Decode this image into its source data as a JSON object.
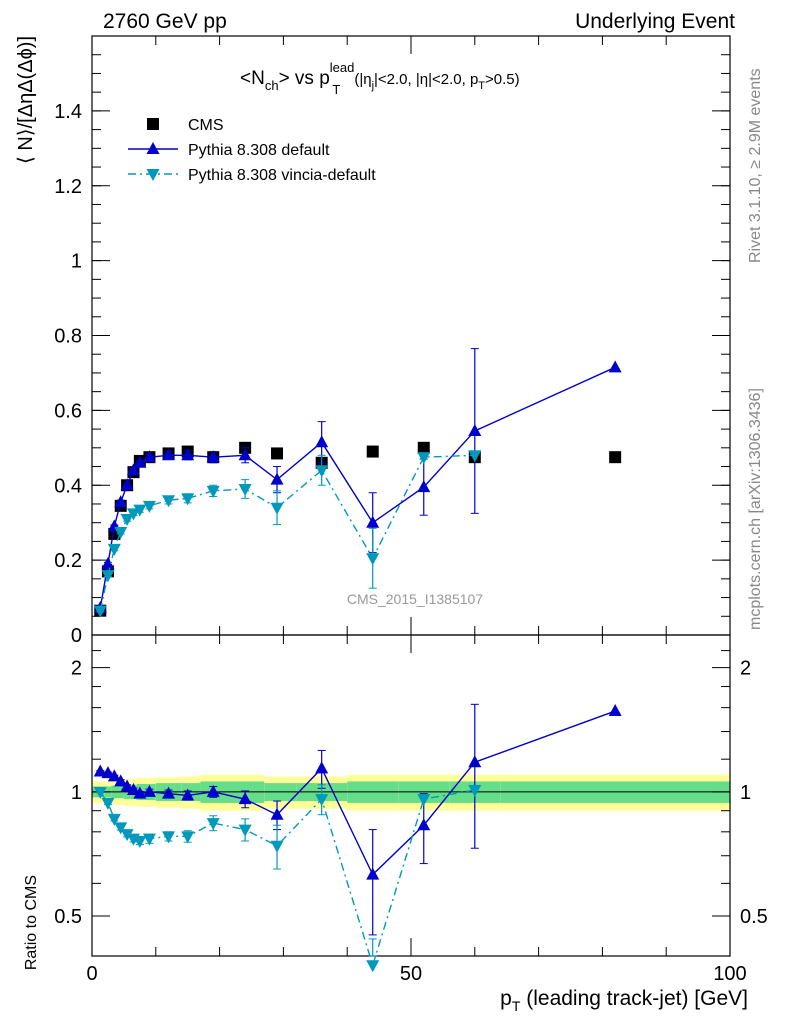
{
  "header": {
    "left": "2760 GeV pp",
    "right": "Underlying Event"
  },
  "title": {
    "prefix": "<N",
    "sub1": "ch",
    "mid": "> vs p",
    "sup": "lead",
    "sub2": "T",
    "cuts_a": "(|η",
    "cuts_a_sub": "j",
    "cuts_b": "|<2.0, |η|<2.0, p",
    "cuts_b_sub": "T",
    "cuts_c": ">0.5)"
  },
  "side_labels": {
    "rivet": "Rivet 3.1.10, ≥ 2.9M events",
    "mcplots": "mcplots.cern.ch [arXiv:1306.3436]"
  },
  "watermark": "CMS_2015_I1385107",
  "axes": {
    "ylabel_main": "⟨ N⟩/[ΔηΔ(Δϕ)]",
    "ylabel_ratio": "Ratio to CMS",
    "xlabel_main": "p",
    "xlabel_sub": "T",
    "xlabel_rest": " (leading track-jet) [GeV]",
    "main_yticks": [
      "0",
      "0.2",
      "0.4",
      "0.6",
      "0.8",
      "1",
      "1.2",
      "1.4"
    ],
    "ratio_yticks": [
      "0.5",
      "1",
      "2"
    ],
    "xticks": [
      "0",
      "50",
      "100"
    ]
  },
  "legend": [
    {
      "label": "CMS",
      "marker": "square",
      "color": "#000000"
    },
    {
      "label": "Pythia 8.308 default",
      "marker": "triangle-up",
      "color": "#0000cc"
    },
    {
      "label": "Pythia 8.308 vincia-default",
      "marker": "triangle-down",
      "color": "#0099bb"
    }
  ],
  "chart_data": {
    "type": "scatter",
    "xlim": [
      0,
      100
    ],
    "ylim": [
      0,
      1.6
    ],
    "ratio_ylim": [
      0.4,
      2.4
    ],
    "ratio_log": true,
    "series": [
      {
        "name": "CMS",
        "color": "#000000",
        "x": [
          1.3,
          2.5,
          3.5,
          4.5,
          5.5,
          6.5,
          7.5,
          9,
          12,
          15,
          19,
          24,
          29,
          36,
          44,
          52,
          60,
          82
        ],
        "y": [
          0.065,
          0.17,
          0.27,
          0.345,
          0.4,
          0.435,
          0.465,
          0.475,
          0.485,
          0.49,
          0.475,
          0.5,
          0.485,
          0.46,
          0.49,
          0.5,
          0.475,
          0.475
        ]
      },
      {
        "name": "Pythia 8.308 default",
        "color": "#0000cc",
        "x": [
          1.3,
          2.5,
          3.5,
          4.5,
          5.5,
          6.5,
          7.5,
          9,
          12,
          15,
          19,
          24,
          29,
          36,
          44,
          52,
          60,
          82
        ],
        "y": [
          0.072,
          0.19,
          0.29,
          0.355,
          0.4,
          0.44,
          0.46,
          0.475,
          0.48,
          0.48,
          0.475,
          0.48,
          0.415,
          0.515,
          0.3,
          0.395,
          0.545,
          0.715
        ],
        "err": [
          0.003,
          0.004,
          0.004,
          0.005,
          0.005,
          0.006,
          0.006,
          0.008,
          0.01,
          0.012,
          0.015,
          0.02,
          0.035,
          0.055,
          0.08,
          0.075,
          0.22,
          0.0
        ],
        "ratio": [
          1.12,
          1.11,
          1.09,
          1.06,
          1.03,
          1.01,
          0.99,
          1.0,
          0.99,
          0.98,
          1.0,
          0.96,
          0.88,
          1.14,
          0.63,
          0.83,
          1.18,
          1.57
        ],
        "ratio_err": [
          0.005,
          0.006,
          0.007,
          0.01,
          0.01,
          0.012,
          0.012,
          0.015,
          0.02,
          0.025,
          0.03,
          0.045,
          0.07,
          0.12,
          0.18,
          0.16,
          0.45,
          0.0
        ]
      },
      {
        "name": "Pythia 8.308 vincia-default",
        "color": "#0099bb",
        "x": [
          1.3,
          2.5,
          3.5,
          4.5,
          5.5,
          6.5,
          7.5,
          9,
          12,
          15,
          19,
          24,
          29,
          36,
          44,
          52,
          60
        ],
        "y": [
          0.065,
          0.16,
          0.23,
          0.275,
          0.31,
          0.325,
          0.335,
          0.345,
          0.36,
          0.365,
          0.385,
          0.39,
          0.34,
          0.44,
          0.205,
          0.475,
          0.48
        ],
        "err": [
          0.003,
          0.004,
          0.005,
          0.005,
          0.006,
          0.006,
          0.007,
          0.008,
          0.01,
          0.012,
          0.015,
          0.025,
          0.045,
          0.04,
          0.08,
          0.0,
          0.0
        ],
        "ratio": [
          1.0,
          0.94,
          0.86,
          0.82,
          0.79,
          0.77,
          0.76,
          0.77,
          0.78,
          0.78,
          0.84,
          0.81,
          0.74,
          0.96,
          0.38,
          0.96,
          1.01
        ],
        "ratio_err": [
          0.005,
          0.008,
          0.01,
          0.012,
          0.012,
          0.014,
          0.015,
          0.02,
          0.02,
          0.025,
          0.035,
          0.05,
          0.09,
          0.08,
          0.06,
          0.0,
          0.0
        ]
      }
    ],
    "band": {
      "x_edges": [
        0,
        2,
        3,
        4,
        5,
        6,
        7,
        8,
        10,
        14,
        17,
        21,
        27,
        32,
        40,
        48,
        56,
        64,
        100
      ],
      "green": [
        0.03,
        0.03,
        0.035,
        0.035,
        0.04,
        0.04,
        0.045,
        0.045,
        0.05,
        0.05,
        0.06,
        0.06,
        0.05,
        0.05,
        0.06,
        0.06,
        0.06,
        0.06
      ],
      "yellow": [
        0.06,
        0.06,
        0.07,
        0.07,
        0.075,
        0.075,
        0.08,
        0.08,
        0.085,
        0.09,
        0.1,
        0.1,
        0.09,
        0.09,
        0.1,
        0.1,
        0.1,
        0.1
      ],
      "green_color": "#66dd88",
      "yellow_color": "#ffff99"
    }
  }
}
